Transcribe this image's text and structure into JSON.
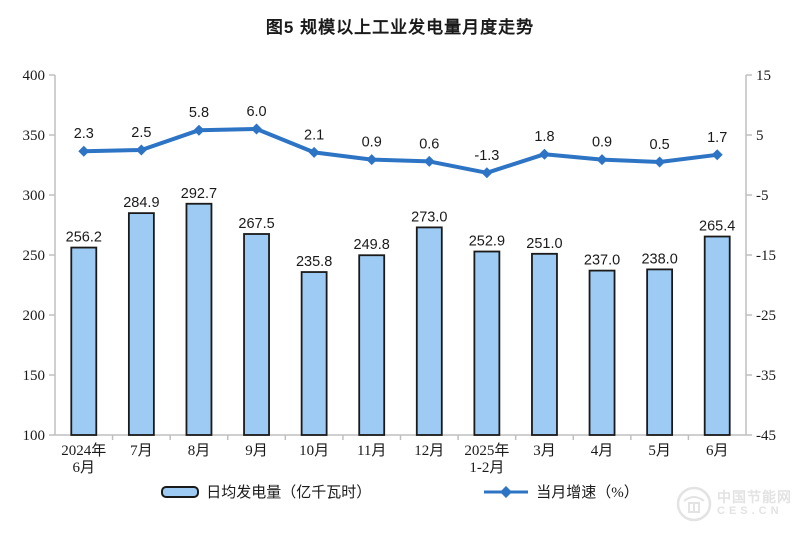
{
  "page": {
    "title": "图5 规模以上工业发电量月度走势"
  },
  "chart_data": {
    "type": "bar",
    "title": "图5 规模以上工业发电量月度走势",
    "categories": [
      "2024年\n6月",
      "7月",
      "8月",
      "9月",
      "10月",
      "11月",
      "12月",
      "2025年\n1-2月",
      "3月",
      "4月",
      "5月",
      "6月"
    ],
    "series": [
      {
        "name": "日均发电量（亿千瓦时）",
        "type": "bar",
        "axis": "left",
        "values": [
          256.2,
          284.9,
          292.7,
          267.5,
          235.8,
          249.8,
          273.0,
          252.9,
          251.0,
          237.0,
          238.0,
          265.4
        ]
      },
      {
        "name": "当月增速（%）",
        "type": "line",
        "axis": "right",
        "values": [
          2.3,
          2.5,
          5.8,
          6.0,
          2.1,
          0.9,
          0.6,
          -1.3,
          1.8,
          0.9,
          0.5,
          1.7
        ]
      }
    ],
    "left_axis": {
      "min": 100,
      "max": 400,
      "step": 50,
      "ticks": [
        400,
        350,
        300,
        250,
        200,
        150,
        100
      ]
    },
    "right_axis": {
      "min": -45,
      "max": 15,
      "step": 10,
      "ticks": [
        15,
        5,
        -5,
        -15,
        -25,
        -35,
        -45
      ]
    },
    "grid": false,
    "legend_position": "bottom",
    "data_labels": true
  },
  "colors": {
    "bar_fill": "#9ECBF3",
    "bar_border": "#1a1a1a",
    "line": "#2E74C4",
    "axis": "#bfbfbf",
    "text": "#1a1a1a",
    "watermark": "#e3e3e3"
  },
  "legend": {
    "bar_label": "日均发电量（亿千瓦时）",
    "line_label": "当月增速（%）"
  },
  "watermark": {
    "line1": "中国节能网",
    "line2": "CES.CN"
  }
}
